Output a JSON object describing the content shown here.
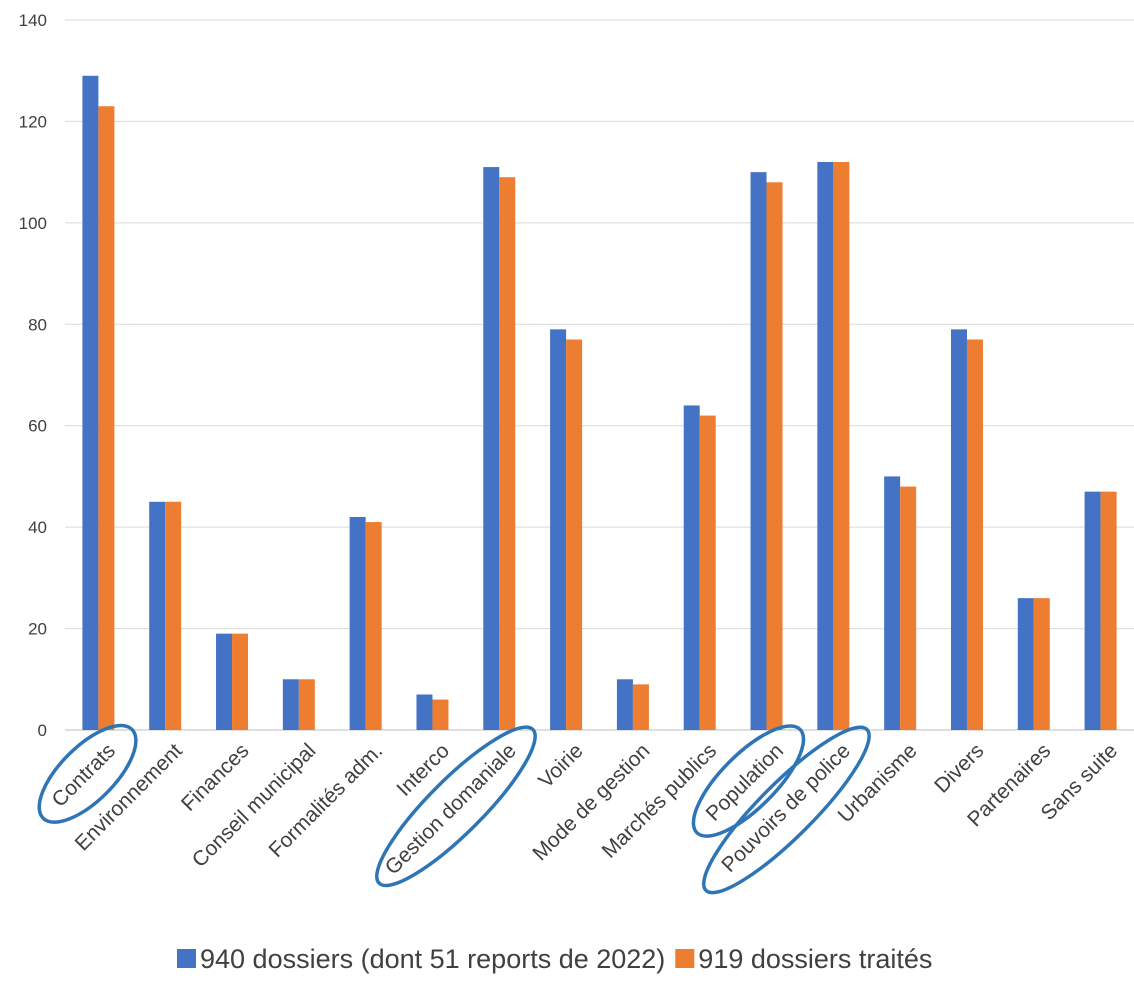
{
  "chart_data": {
    "type": "bar",
    "categories": [
      "Contrats",
      "Environnement",
      "Finances",
      "Conseil municipal",
      "Formalités adm.",
      "Interco",
      "Gestion domaniale",
      "Voirie",
      "Mode de gestion",
      "Marchés publics",
      "Population",
      "Pouvoirs de police",
      "Urbanisme",
      "Divers",
      "Partenaires",
      "Sans suite"
    ],
    "series": [
      {
        "name": "940 dossiers (dont 51 reports de 2022)",
        "color": "#4472C4",
        "values": [
          129,
          45,
          19,
          10,
          42,
          7,
          111,
          79,
          10,
          64,
          110,
          112,
          50,
          79,
          26,
          47
        ]
      },
      {
        "name": "919 dossiers traités",
        "color": "#ED7D31",
        "values": [
          123,
          45,
          19,
          10,
          41,
          6,
          109,
          77,
          9,
          62,
          108,
          112,
          48,
          77,
          26,
          47
        ]
      }
    ],
    "ylim": [
      0,
      140
    ],
    "yticks": [
      0,
      20,
      40,
      60,
      80,
      100,
      120,
      140
    ],
    "grid": true,
    "legend_position": "bottom",
    "circled_categories": [
      "Contrats",
      "Gestion domaniale",
      "Population",
      "Pouvoirs de police"
    ],
    "annotation_color": "#2E75B6"
  }
}
